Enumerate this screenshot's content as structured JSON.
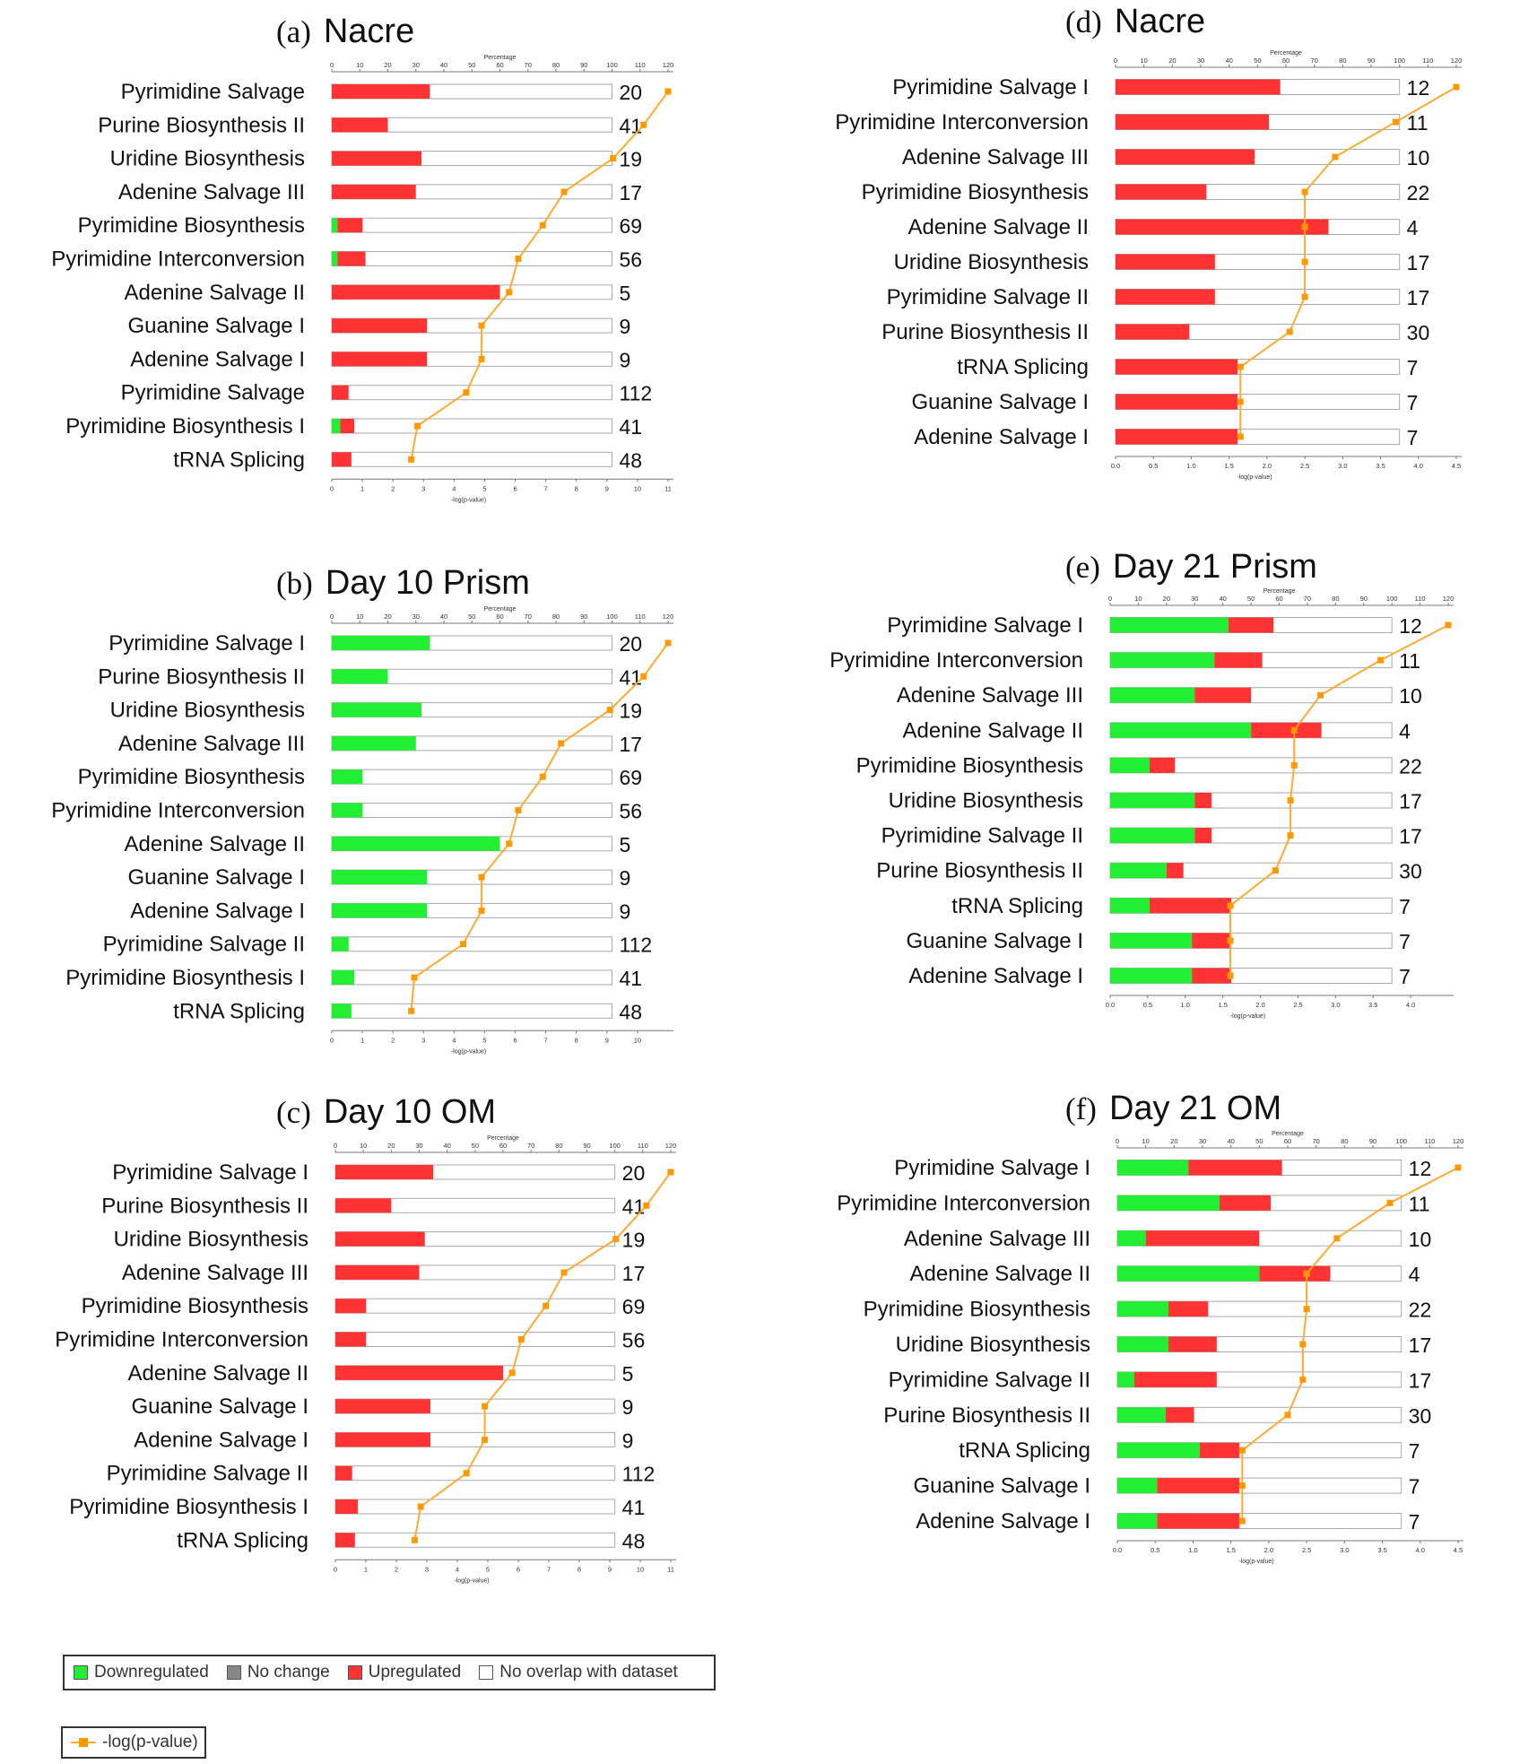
{
  "colors": {
    "down": "#22ee33",
    "none": "#888888",
    "up": "#ff3333",
    "line": "#ffaa33",
    "line_marker": "#ff9900"
  },
  "axes": {
    "top_label": "Percentage",
    "bottom_label": "-log(p-value)"
  },
  "legend": {
    "down": "Downregulated",
    "none": "No change",
    "up": "Upregulated",
    "nooverlap": "No overlap with dataset",
    "line": "-log(p-value)"
  },
  "chart_data": [
    {
      "type": "bar",
      "panel": "a",
      "letter": "(a)",
      "title": "Nacre",
      "categories": [
        "Pyrimidine Salvage",
        "Purine Biosynthesis II",
        "Uridine Biosynthesis",
        "Adenine Salvage III",
        "Pyrimidine Biosynthesis",
        "Pyrimidine Interconversion",
        "Adenine Salvage II",
        "Guanine Salvage I",
        "Adenine Salvage I",
        "Pyrimidine Salvage",
        "Pyrimidine Biosynthesis I",
        "tRNA Splicing"
      ],
      "down_pct": [
        0,
        0,
        0,
        0,
        2,
        2,
        0,
        0,
        0,
        0,
        3,
        0
      ],
      "up_pct": [
        35,
        20,
        32,
        30,
        9,
        10,
        60,
        34,
        34,
        6,
        5,
        7
      ],
      "counts": [
        "20",
        "41",
        "19",
        "17",
        "69",
        "56",
        "5",
        "9",
        "9",
        "112",
        "41",
        "48"
      ],
      "neg_log_p": [
        11.0,
        10.2,
        9.2,
        7.6,
        6.9,
        6.1,
        5.8,
        4.9,
        4.9,
        4.4,
        2.8,
        2.6
      ],
      "pct_ticks": [
        "0",
        "10",
        "20",
        "30",
        "40",
        "50",
        "60",
        "70",
        "80",
        "90",
        "100",
        "110",
        "120"
      ],
      "p_ticks": [
        "0",
        "1",
        "2",
        "3",
        "4",
        "5",
        "6",
        "7",
        "8",
        "9",
        "10",
        "11"
      ],
      "pct_max": 120,
      "p_max": 11
    },
    {
      "type": "bar",
      "panel": "b",
      "letter": "(b)",
      "title": "Day 10 Prism",
      "categories": [
        "Pyrimidine Salvage I",
        "Purine Biosynthesis II",
        "Uridine Biosynthesis",
        "Adenine Salvage III",
        "Pyrimidine Biosynthesis",
        "Pyrimidine Interconversion",
        "Adenine Salvage II",
        "Guanine Salvage I",
        "Adenine Salvage I",
        "Pyrimidine Salvage II",
        "Pyrimidine Biosynthesis I",
        "tRNA Splicing"
      ],
      "down_pct": [
        35,
        20,
        32,
        30,
        11,
        11,
        60,
        34,
        34,
        6,
        8,
        7
      ],
      "up_pct": [
        0,
        0,
        0,
        0,
        0,
        0,
        0,
        0,
        0,
        0,
        0,
        0
      ],
      "counts": [
        "20",
        "41",
        "19",
        "17",
        "69",
        "56",
        "5",
        "9",
        "9",
        "112",
        "41",
        "48"
      ],
      "neg_log_p": [
        11.0,
        10.2,
        9.1,
        7.5,
        6.9,
        6.1,
        5.8,
        4.9,
        4.9,
        4.3,
        2.7,
        2.6
      ],
      "pct_ticks": [
        "0",
        "10",
        "20",
        "30",
        "40",
        "50",
        "60",
        "70",
        "80",
        "90",
        "100",
        "110",
        "120"
      ],
      "p_ticks": [
        "0",
        "1",
        "2",
        "3",
        "4",
        "5",
        "6",
        "7",
        "8",
        "9",
        "10"
      ],
      "pct_max": 120,
      "p_max": 11
    },
    {
      "type": "bar",
      "panel": "c",
      "letter": "(c)",
      "title": "Day 10 OM",
      "categories": [
        "Pyrimidine Salvage I",
        "Purine Biosynthesis II",
        "Uridine Biosynthesis",
        "Adenine Salvage III",
        "Pyrimidine Biosynthesis",
        "Pyrimidine Interconversion",
        "Adenine Salvage II",
        "Guanine Salvage I",
        "Adenine Salvage I",
        "Pyrimidine Salvage II",
        "Pyrimidine Biosynthesis I",
        "tRNA Splicing"
      ],
      "down_pct": [
        0,
        0,
        0,
        0,
        0,
        0,
        0,
        0,
        0,
        0,
        0,
        0
      ],
      "up_pct": [
        35,
        20,
        32,
        30,
        11,
        11,
        60,
        34,
        34,
        6,
        8,
        7
      ],
      "counts": [
        "20",
        "41",
        "19",
        "17",
        "69",
        "56",
        "5",
        "9",
        "9",
        "112",
        "41",
        "48"
      ],
      "neg_log_p": [
        11.0,
        10.2,
        9.2,
        7.5,
        6.9,
        6.1,
        5.8,
        4.9,
        4.9,
        4.3,
        2.8,
        2.6
      ],
      "pct_ticks": [
        "0",
        "10",
        "20",
        "30",
        "40",
        "50",
        "60",
        "70",
        "80",
        "90",
        "100",
        "110",
        "120"
      ],
      "p_ticks": [
        "0",
        "1",
        "2",
        "3",
        "4",
        "5",
        "6",
        "7",
        "8",
        "9",
        "10",
        "11"
      ],
      "pct_max": 120,
      "p_max": 11
    },
    {
      "type": "bar",
      "panel": "d",
      "letter": "(d)",
      "title": "Nacre",
      "categories": [
        "Pyrimidine Salvage I",
        "Pyrimidine Interconversion",
        "Adenine Salvage III",
        "Pyrimidine Biosynthesis",
        "Adenine Salvage II",
        "Uridine Biosynthesis",
        "Pyrimidine Salvage II",
        "Purine Biosynthesis II",
        "tRNA Splicing",
        "Guanine Salvage I",
        "Adenine Salvage I"
      ],
      "down_pct": [
        0,
        0,
        0,
        0,
        0,
        0,
        0,
        0,
        0,
        0,
        0
      ],
      "up_pct": [
        58,
        54,
        49,
        32,
        75,
        35,
        35,
        26,
        43,
        43,
        43
      ],
      "counts": [
        "12",
        "11",
        "10",
        "22",
        "4",
        "17",
        "17",
        "30",
        "7",
        "7",
        "7"
      ],
      "neg_log_p": [
        4.5,
        3.7,
        2.9,
        2.5,
        2.5,
        2.5,
        2.5,
        2.3,
        1.65,
        1.65,
        1.65
      ],
      "pct_ticks": [
        "0",
        "10",
        "20",
        "30",
        "40",
        "50",
        "60",
        "70",
        "80",
        "90",
        "100",
        "110",
        "120"
      ],
      "p_ticks": [
        "0.0",
        "0.5",
        "1.0",
        "1.5",
        "2.0",
        "2.5",
        "3.0",
        "3.5",
        "4.0",
        "4.5"
      ],
      "pct_max": 120,
      "p_max": 4.5
    },
    {
      "type": "bar",
      "panel": "e",
      "letter": "(e)",
      "title": "Day 21 Prism",
      "categories": [
        "Pyrimidine Salvage I",
        "Pyrimidine Interconversion",
        "Adenine Salvage III",
        "Adenine Salvage II",
        "Pyrimidine Biosynthesis",
        "Uridine Biosynthesis",
        "Pyrimidine Salvage II",
        "Purine Biosynthesis II",
        "tRNA Splicing",
        "Guanine Salvage I",
        "Adenine Salvage I"
      ],
      "down_pct": [
        42,
        37,
        30,
        50,
        14,
        30,
        30,
        20,
        14,
        29,
        29
      ],
      "up_pct": [
        16,
        17,
        20,
        25,
        9,
        6,
        6,
        6,
        29,
        14,
        14
      ],
      "counts": [
        "12",
        "11",
        "10",
        "4",
        "22",
        "17",
        "17",
        "30",
        "7",
        "7",
        "7"
      ],
      "neg_log_p": [
        4.5,
        3.6,
        2.8,
        2.45,
        2.45,
        2.4,
        2.4,
        2.2,
        1.6,
        1.6,
        1.6
      ],
      "pct_ticks": [
        "0",
        "10",
        "20",
        "30",
        "40",
        "50",
        "60",
        "70",
        "80",
        "90",
        "100",
        "110",
        "120"
      ],
      "p_ticks": [
        "0.0",
        "0.5",
        "1.0",
        "1.5",
        "2.0",
        "2.5",
        "3.0",
        "3.5",
        "4.0"
      ],
      "pct_max": 120,
      "p_max": 4.5
    },
    {
      "type": "bar",
      "panel": "f",
      "letter": "(f)",
      "title": "Day 21 OM",
      "categories": [
        "Pyrimidine Salvage I",
        "Pyrimidine Interconversion",
        "Adenine Salvage III",
        "Adenine Salvage II",
        "Pyrimidine Biosynthesis",
        "Uridine Biosynthesis",
        "Pyrimidine Salvage II",
        "Purine Biosynthesis II",
        "tRNA Splicing",
        "Guanine Salvage I",
        "Adenine Salvage I"
      ],
      "down_pct": [
        25,
        36,
        10,
        50,
        18,
        18,
        6,
        17,
        29,
        14,
        14
      ],
      "up_pct": [
        33,
        18,
        40,
        25,
        14,
        17,
        29,
        10,
        14,
        29,
        29
      ],
      "counts": [
        "12",
        "11",
        "10",
        "4",
        "22",
        "17",
        "17",
        "30",
        "7",
        "7",
        "7"
      ],
      "neg_log_p": [
        4.5,
        3.6,
        2.9,
        2.5,
        2.5,
        2.45,
        2.45,
        2.25,
        1.65,
        1.65,
        1.65
      ],
      "pct_ticks": [
        "0",
        "10",
        "20",
        "30",
        "40",
        "50",
        "60",
        "70",
        "80",
        "90",
        "100",
        "110",
        "120"
      ],
      "p_ticks": [
        "0.0",
        "0.5",
        "1.0",
        "1.5",
        "2.0",
        "2.5",
        "3.0",
        "3.5",
        "4.0",
        "4.5"
      ],
      "pct_max": 120,
      "p_max": 4.5
    }
  ]
}
